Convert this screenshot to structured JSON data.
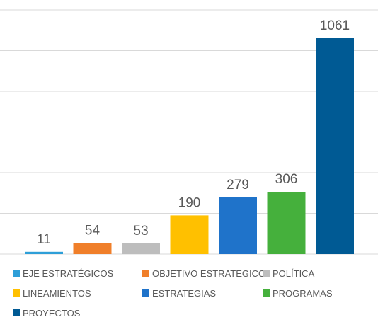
{
  "chart_data": {
    "type": "bar",
    "title": "",
    "xlabel": "",
    "ylabel": "",
    "ylim": [
      0,
      1200
    ],
    "grid": true,
    "legend_position": "bottom",
    "categories": [
      "EJE ESTRATÉGICOS",
      "OBJETIVO ESTRATEGICO",
      "POLÍTICA",
      "LINEAMIENTOS",
      "ESTRATEGIAS",
      "PROGRAMAS",
      "PROYECTOS"
    ],
    "values": [
      11,
      54,
      53,
      190,
      279,
      306,
      1061
    ],
    "colors": [
      "#2E9FD8",
      "#F07F2A",
      "#BDBDBD",
      "#FFC000",
      "#1F73CA",
      "#45B03C",
      "#005A94"
    ]
  }
}
